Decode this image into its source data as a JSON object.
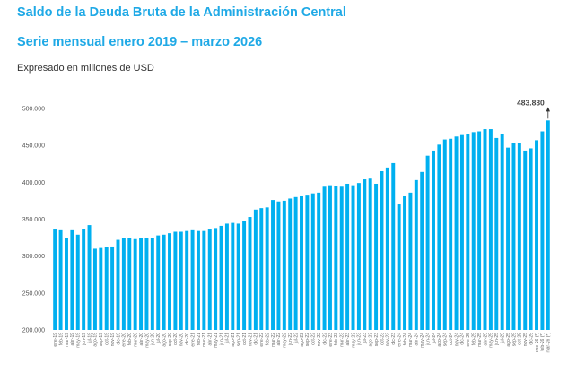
{
  "header": {
    "title": "Saldo de la Deuda Bruta de la Administración Central",
    "subtitle": "Serie mensual enero 2019 – marzo 2026",
    "units": "Expresado en millones de USD"
  },
  "colors": {
    "bar": "#00b0f0",
    "title": "#1fa9e6",
    "annotation_arrow": "#333333"
  },
  "chart_data": {
    "type": "bar",
    "title": "Saldo de la Deuda Bruta de la Administración Central",
    "subtitle": "Serie mensual enero 2019 – marzo 2026",
    "xlabel": "",
    "ylabel": "Millones de USD",
    "ylim": [
      200000,
      500000
    ],
    "yticks": [
      200000,
      250000,
      300000,
      350000,
      400000,
      450000,
      500000
    ],
    "ytick_labels": [
      "200.000",
      "250.000",
      "300.000",
      "350.000",
      "400.000",
      "450.000",
      "500.000"
    ],
    "grid": false,
    "legend": "none",
    "categories": [
      "ene-19",
      "feb-19",
      "mar-19",
      "abr-19",
      "may-19",
      "jun-19",
      "jul-19",
      "ago-19",
      "sep-19",
      "oct-19",
      "nov-19",
      "dic-19",
      "ene-20",
      "feb-20",
      "mar-20",
      "abr-20",
      "may-20",
      "jun-20",
      "jul-20",
      "ago-20",
      "sep-20",
      "oct-20",
      "nov-20",
      "dic-20",
      "ene-21",
      "feb-21",
      "mar-21",
      "abr-21",
      "may-21",
      "jun-21",
      "jul-21",
      "ago-21",
      "sep-21",
      "oct-21",
      "nov-21",
      "dic-21",
      "ene-22",
      "feb-22",
      "mar-22",
      "abr-22",
      "may-22",
      "jun-22",
      "jul-22",
      "ago-22",
      "sep-22",
      "oct-22",
      "nov-22",
      "dic-22",
      "ene-23",
      "feb-23",
      "mar-23",
      "abr-23",
      "may-23",
      "jun-23",
      "jul-23",
      "ago-23",
      "sep-23",
      "oct-23",
      "nov-23",
      "dic-23",
      "ene-24",
      "feb-24",
      "mar-24",
      "abr-24",
      "may-24",
      "jun-24",
      "jul-24",
      "ago-24",
      "sep-24",
      "oct-24",
      "nov-24",
      "dic-24",
      "ene-25",
      "feb-25",
      "mar-25",
      "abr-25",
      "may-25",
      "jun-25",
      "jul-25",
      "ago-25",
      "sep-25",
      "oct-25",
      "nov-25",
      "dic-25",
      "ene-26 (*)",
      "feb-26 (*)",
      "mar-26 (*)"
    ],
    "values": [
      336000,
      335000,
      325000,
      335000,
      329000,
      337000,
      342000,
      310000,
      311000,
      312000,
      313000,
      322000,
      325000,
      324000,
      323000,
      324000,
      324000,
      325000,
      328000,
      329000,
      331000,
      333000,
      333000,
      334000,
      335000,
      334000,
      334000,
      336000,
      338000,
      341000,
      344000,
      345000,
      344000,
      348000,
      353000,
      363000,
      365000,
      366000,
      376000,
      374000,
      375000,
      378000,
      380000,
      381000,
      382000,
      385000,
      386000,
      394000,
      396000,
      395000,
      394000,
      398000,
      396000,
      399000,
      404000,
      405000,
      398000,
      415000,
      420000,
      426000,
      370000,
      381000,
      386000,
      403000,
      414000,
      436000,
      443000,
      451000,
      458000,
      459000,
      462000,
      464000,
      465000,
      468000,
      469000,
      472000,
      472000,
      460000,
      465000,
      447000,
      453000,
      453000,
      443000,
      446000,
      457000,
      469000,
      483830
    ],
    "annotations": [
      {
        "category": "mar-26 (*)",
        "text": "483.830",
        "arrow": "up"
      }
    ]
  }
}
